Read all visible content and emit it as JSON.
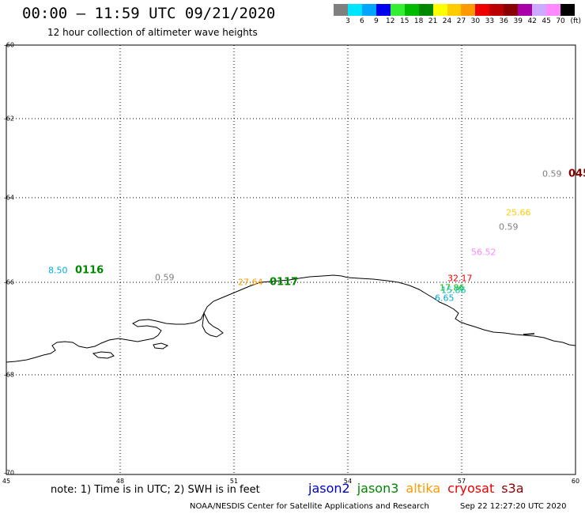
{
  "header": {
    "title": "00:00 – 11:59 UTC 09/21/2020",
    "subtitle": "12 hour collection of altimeter wave heights"
  },
  "legend": {
    "colors": [
      "#7f7f7f",
      "#00e5ff",
      "#00a5ff",
      "#0000ee",
      "#33ee33",
      "#00bb00",
      "#008800",
      "#ffff00",
      "#ffcc00",
      "#ff9900",
      "#ee0000",
      "#bb0000",
      "#880000",
      "#aa00aa",
      "#ccaaff",
      "#ff88ff",
      "#000000"
    ],
    "labels": [
      "3",
      "6",
      "9",
      "12",
      "15",
      "18",
      "21",
      "24",
      "27",
      "30",
      "33",
      "36",
      "39",
      "42",
      "45",
      "70"
    ],
    "unit": "(ft)"
  },
  "axes": {
    "lat_labels": [
      "-60",
      "-62",
      "-64",
      "-66",
      "-68",
      "-70"
    ],
    "lon_labels": [
      "45",
      "48",
      "51",
      "54",
      "57",
      "60"
    ]
  },
  "observations": [
    {
      "text": "8.50",
      "color": "#00aadd"
    },
    {
      "text": "0116",
      "color": "#008800"
    },
    {
      "text": "0.59",
      "color": "#7f7f7f"
    },
    {
      "text": "27.64",
      "color": "#ff9900"
    },
    {
      "text": "0117",
      "color": "#008800"
    },
    {
      "text": "0.59",
      "color": "#7f7f7f"
    },
    {
      "text": "045",
      "color": "#880000"
    },
    {
      "text": "25.66",
      "color": "#ffcc00"
    },
    {
      "text": "0.59",
      "color": "#7f7f7f"
    },
    {
      "text": "56.52",
      "color": "#ff88ff"
    },
    {
      "text": "32.17",
      "color": "#ee0000"
    },
    {
      "text": "17.86",
      "color": "#00bb00"
    },
    {
      "text": "15.86",
      "color": "#00bbaa"
    },
    {
      "text": "6.65",
      "color": "#00aadd"
    }
  ],
  "footer": {
    "note": "note: 1) Time is in UTC; 2) SWH is in feet",
    "satellites": [
      {
        "name": "jason2",
        "color": "#0000cc"
      },
      {
        "name": "jason3",
        "color": "#008800"
      },
      {
        "name": "altika",
        "color": "#ff9900"
      },
      {
        "name": "cryosat",
        "color": "#ee0000"
      },
      {
        "name": "s3a",
        "color": "#880000"
      }
    ],
    "credit": "NOAA/NESDIS Center for Satellite Applications and Research",
    "timestamp": "Sep 22 12:27:20 UTC 2020"
  }
}
